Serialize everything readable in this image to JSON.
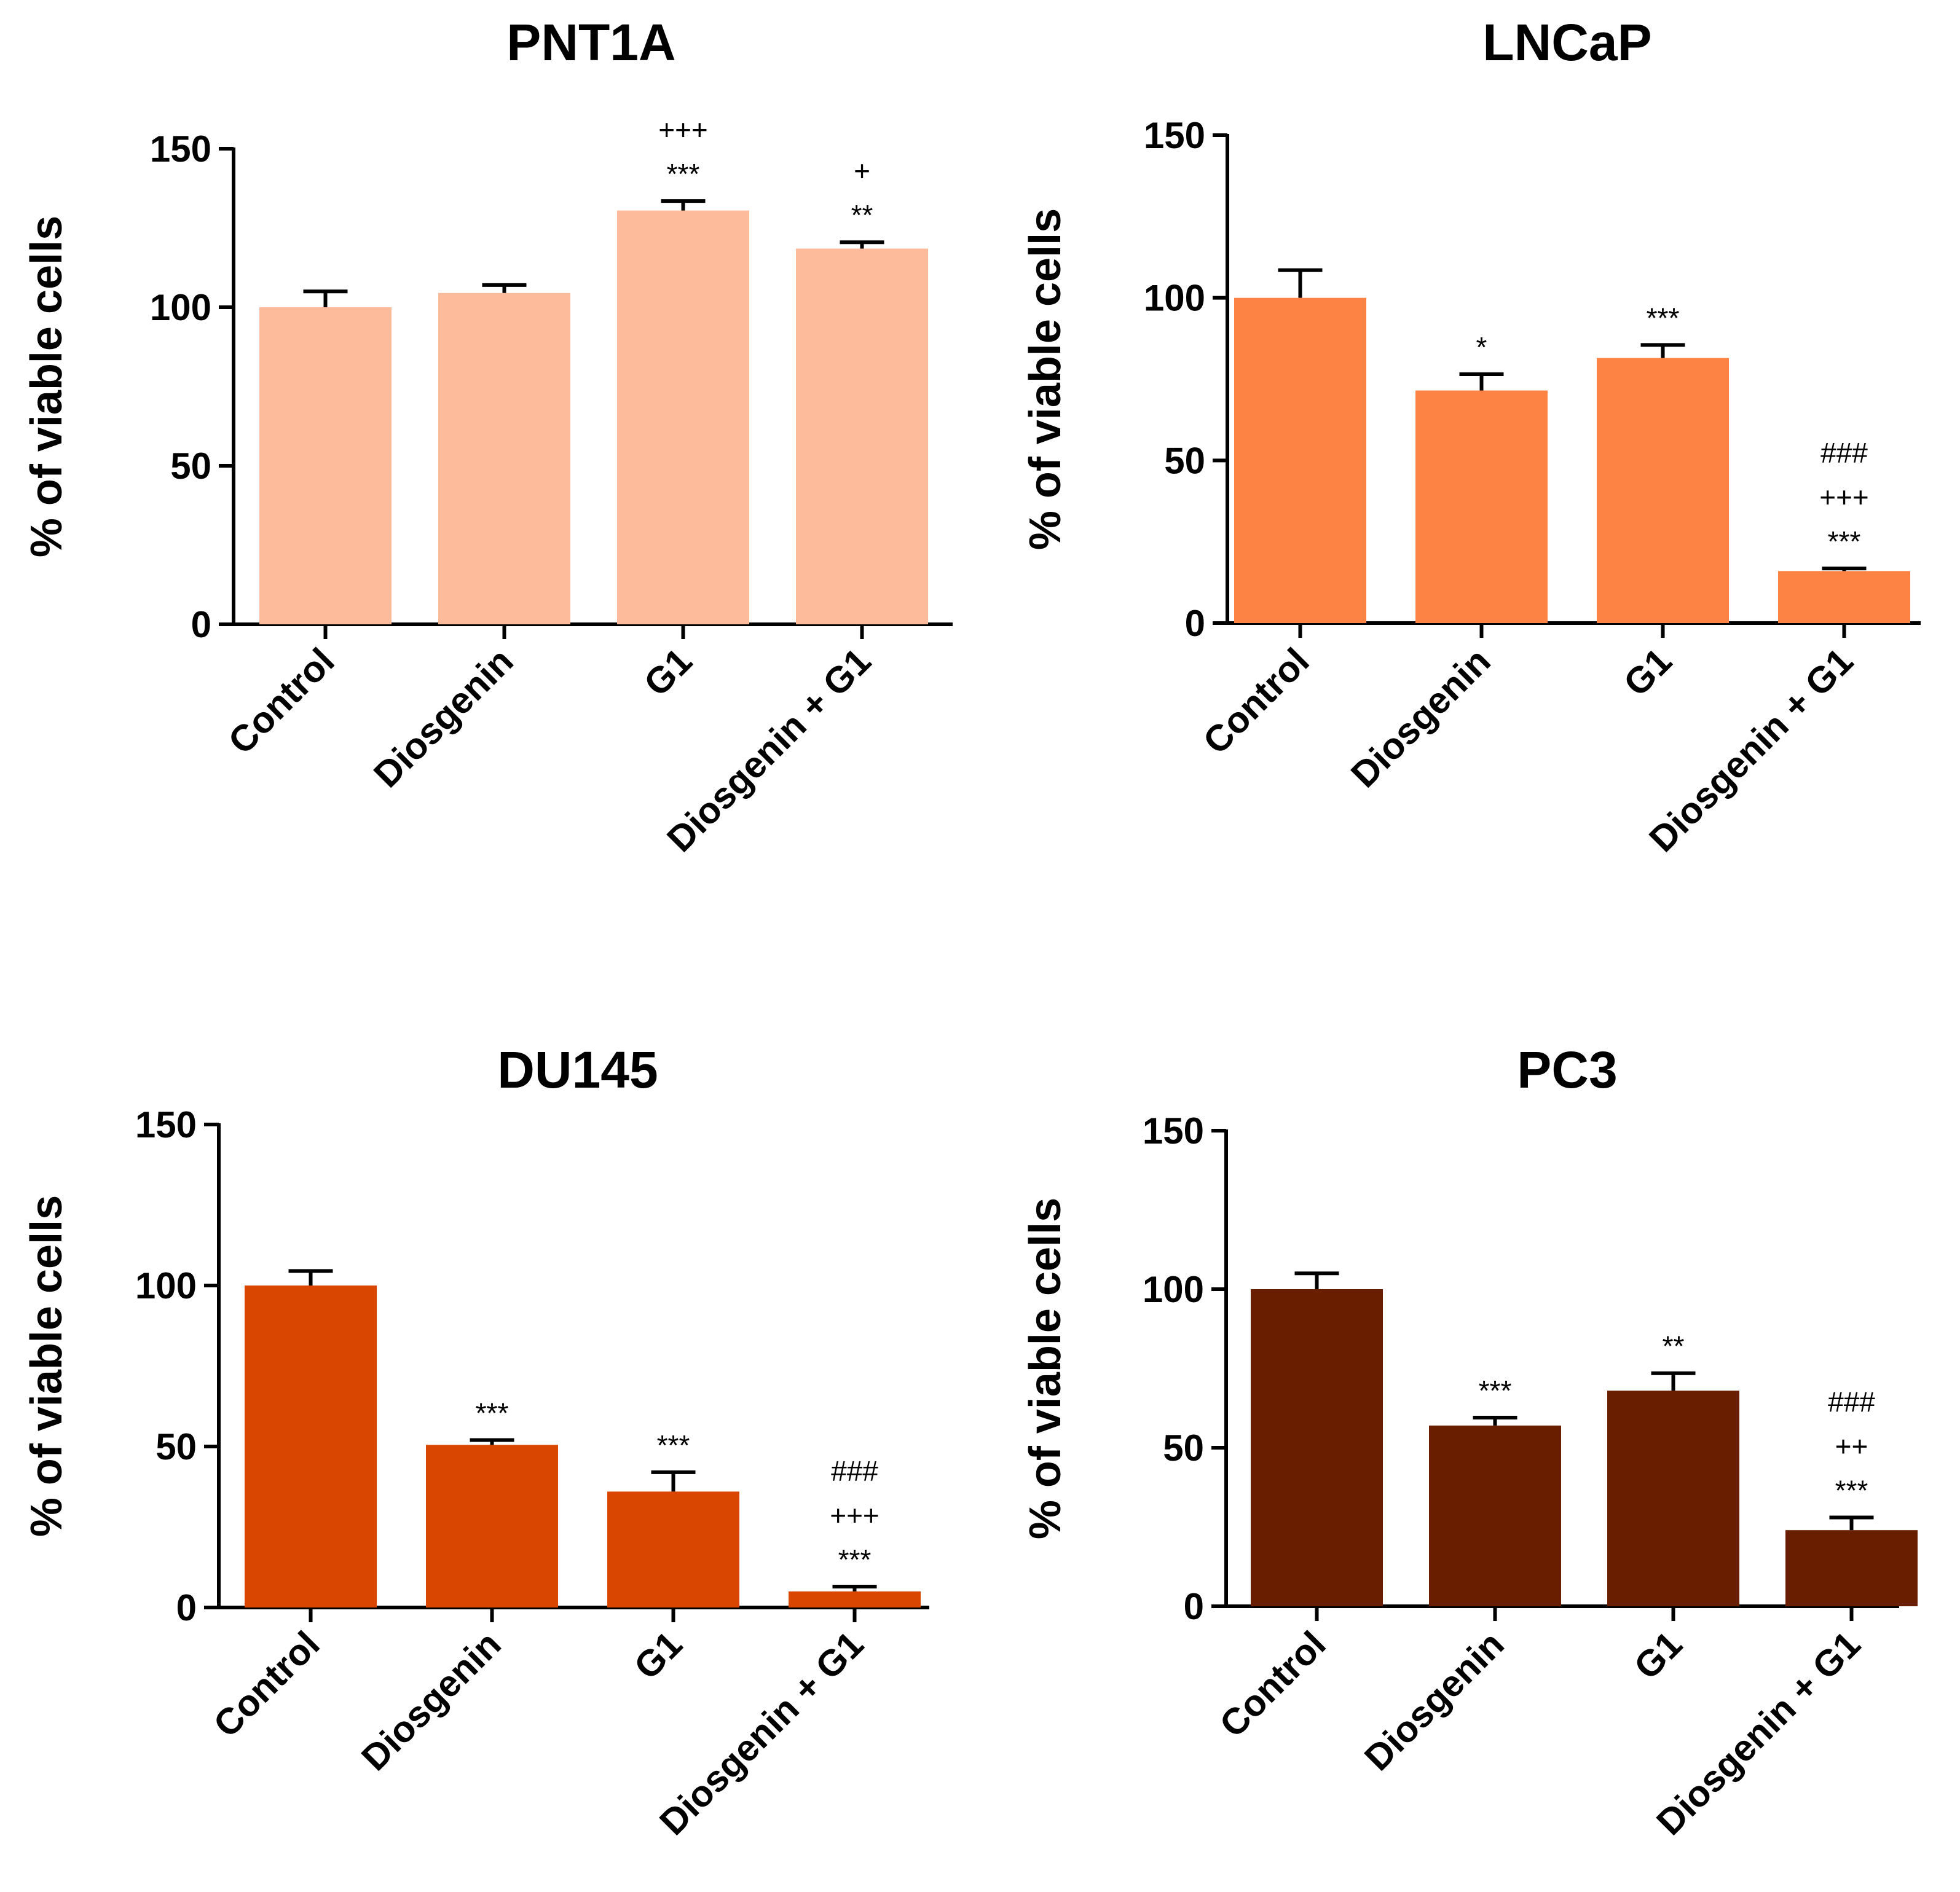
{
  "chart_data": [
    {
      "type": "bar",
      "title": "PNT1A",
      "ylabel": "% of viable cells",
      "xlabel": "",
      "ylim": [
        0,
        150
      ],
      "yticks": [
        0,
        50,
        100,
        150
      ],
      "categories": [
        "Control",
        "Diosgenin",
        "G1",
        "Diosgenin + G1"
      ],
      "values": [
        100,
        104.5,
        130.5,
        118.5
      ],
      "errors": [
        5,
        2.5,
        3,
        2
      ],
      "annotations": [
        [],
        [],
        [
          "***",
          "+++"
        ],
        [
          "**",
          "+"
        ]
      ],
      "color": "#fdbb9b"
    },
    {
      "type": "bar",
      "title": "LNCaP",
      "ylabel": "% of viable cells",
      "xlabel": "",
      "ylim": [
        0,
        150
      ],
      "yticks": [
        0,
        50,
        100,
        150
      ],
      "categories": [
        "Control",
        "Diosgenin",
        "G1",
        "Diosgenin + G1"
      ],
      "values": [
        100,
        71.5,
        81.5,
        16
      ],
      "errors": [
        8.5,
        5,
        4,
        0.8
      ],
      "annotations": [
        [],
        [
          "*"
        ],
        [
          "***"
        ],
        [
          "***",
          "+++",
          "###"
        ]
      ],
      "color": "#fc8343"
    },
    {
      "type": "bar",
      "title": "DU145",
      "ylabel": "% of viable cells",
      "xlabel": "",
      "ylim": [
        0,
        150
      ],
      "yticks": [
        0,
        50,
        100,
        150
      ],
      "categories": [
        "Control",
        "Diosgenin",
        "G1",
        "Diosgenin + G1"
      ],
      "values": [
        100,
        50.5,
        36,
        5
      ],
      "errors": [
        4.5,
        1.5,
        6,
        1.5
      ],
      "annotations": [
        [],
        [
          "***"
        ],
        [
          "***"
        ],
        [
          "***",
          "+++",
          "###"
        ]
      ],
      "color": "#d94602"
    },
    {
      "type": "bar",
      "title": "PC3",
      "ylabel": "% of viable cells",
      "xlabel": "",
      "ylim": [
        0,
        150
      ],
      "yticks": [
        0,
        50,
        100,
        150
      ],
      "categories": [
        "Control",
        "Diosgenin",
        "G1",
        "Diosgenin + G1"
      ],
      "values": [
        100,
        57,
        68,
        24
      ],
      "errors": [
        5,
        2.5,
        5.5,
        4
      ],
      "annotations": [
        [],
        [
          "***"
        ],
        [
          "**"
        ],
        [
          "***",
          "++",
          "###"
        ]
      ],
      "color": "#6a1e00"
    }
  ]
}
